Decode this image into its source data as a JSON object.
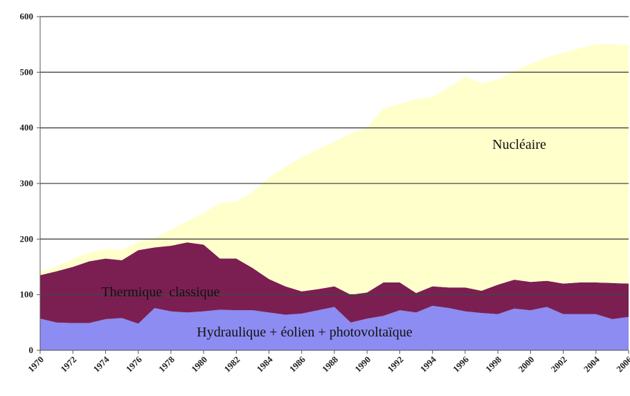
{
  "chart_data": {
    "type": "stacked_area",
    "x": [
      1970,
      1971,
      1972,
      1973,
      1974,
      1975,
      1976,
      1977,
      1978,
      1979,
      1980,
      1981,
      1982,
      1983,
      1984,
      1985,
      1986,
      1987,
      1988,
      1989,
      1990,
      1991,
      1992,
      1993,
      1994,
      1995,
      1996,
      1997,
      1998,
      1999,
      2000,
      2001,
      2002,
      2003,
      2004,
      2005,
      2006
    ],
    "xlim": [
      1970,
      2006
    ],
    "xticks": [
      1970,
      1972,
      1974,
      1976,
      1978,
      1980,
      1982,
      1984,
      1986,
      1988,
      1990,
      1992,
      1994,
      1996,
      1998,
      2000,
      2002,
      2004,
      2006
    ],
    "ylim": [
      0,
      600
    ],
    "yticks": [
      0,
      100,
      200,
      300,
      400,
      500,
      600
    ],
    "grid": true,
    "series": [
      {
        "name": "Hydraulique + éolien + photovoltaïque",
        "color": "#8c8cf2",
        "values": [
          57,
          50,
          49,
          49,
          56,
          58,
          48,
          76,
          70,
          68,
          70,
          73,
          72,
          72,
          68,
          64,
          66,
          72,
          78,
          50,
          57,
          62,
          72,
          68,
          80,
          76,
          70,
          67,
          65,
          75,
          72,
          78,
          65,
          65,
          65,
          56,
          60
        ]
      },
      {
        "name": "Thermique  classique",
        "color": "#7b1f52",
        "values": [
          78,
          92,
          101,
          111,
          109,
          104,
          132,
          109,
          118,
          126,
          120,
          92,
          93,
          76,
          60,
          51,
          40,
          38,
          37,
          50,
          47,
          60,
          50,
          35,
          35,
          37,
          43,
          40,
          53,
          52,
          51,
          47,
          55,
          57,
          57,
          65,
          60
        ]
      },
      {
        "name": "Nucléaire",
        "color": "#ffffcc",
        "values": [
          7,
          8,
          15,
          16,
          17,
          18,
          15,
          17,
          29,
          38,
          57,
          100,
          102,
          137,
          182,
          215,
          241,
          252,
          260,
          290,
          296,
          313,
          321,
          349,
          340,
          360,
          379,
          373,
          369,
          375,
          392,
          402,
          415,
          421,
          428,
          429,
          429
        ]
      }
    ]
  }
}
